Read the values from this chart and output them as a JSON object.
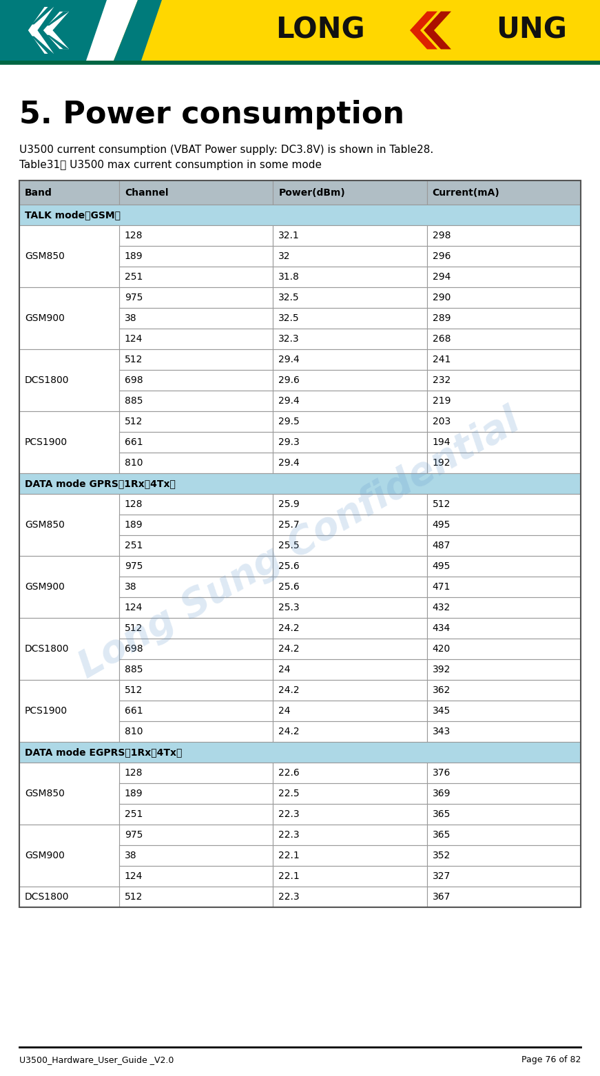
{
  "title": "5. Power consumption",
  "subtitle": "U3500 current consumption (VBAT Power supply: DC3.8V) is shown in Table28.",
  "table_title": "Table31： U3500 max current consumption in some mode",
  "footer_left": "U3500_Hardware_User_Guide _V2.0",
  "footer_right": "Page 76 of 82",
  "col_headers": [
    "Band",
    "Channel",
    "Power(dBm)",
    "Current(mA)"
  ],
  "header_row_bg": "#B8C8D8",
  "section_bg": "#ADD8E6",
  "data_bg": "#FFFFFF",
  "border_color": "#999999",
  "watermark_text": "Long Sung Confidential",
  "watermark_color": "#6699CC",
  "watermark_alpha": 0.22,
  "table_data": [
    {
      "section": "TALK mode（GSM）",
      "band": "GSM850",
      "band_rows": 3,
      "rows": [
        [
          "128",
          "32.1",
          "298"
        ],
        [
          "189",
          "32",
          "296"
        ],
        [
          "251",
          "31.8",
          "294"
        ]
      ]
    },
    {
      "section": "TALK mode（GSM）",
      "band": "GSM900",
      "band_rows": 3,
      "rows": [
        [
          "975",
          "32.5",
          "290"
        ],
        [
          "38",
          "32.5",
          "289"
        ],
        [
          "124",
          "32.3",
          "268"
        ]
      ]
    },
    {
      "section": "TALK mode（GSM）",
      "band": "DCS1800",
      "band_rows": 3,
      "rows": [
        [
          "512",
          "29.4",
          "241"
        ],
        [
          "698",
          "29.6",
          "232"
        ],
        [
          "885",
          "29.4",
          "219"
        ]
      ]
    },
    {
      "section": "TALK mode（GSM）",
      "band": "PCS1900",
      "band_rows": 3,
      "rows": [
        [
          "512",
          "29.5",
          "203"
        ],
        [
          "661",
          "29.3",
          "194"
        ],
        [
          "810",
          "29.4",
          "192"
        ]
      ]
    },
    {
      "section": "DATA mode GPRS（1Rx，4Tx）",
      "band": "GSM850",
      "band_rows": 3,
      "rows": [
        [
          "128",
          "25.9",
          "512"
        ],
        [
          "189",
          "25.7",
          "495"
        ],
        [
          "251",
          "25.5",
          "487"
        ]
      ]
    },
    {
      "section": "DATA mode GPRS（1Rx，4Tx）",
      "band": "GSM900",
      "band_rows": 3,
      "rows": [
        [
          "975",
          "25.6",
          "495"
        ],
        [
          "38",
          "25.6",
          "471"
        ],
        [
          "124",
          "25.3",
          "432"
        ]
      ]
    },
    {
      "section": "DATA mode GPRS（1Rx，4Tx）",
      "band": "DCS1800",
      "band_rows": 3,
      "rows": [
        [
          "512",
          "24.2",
          "434"
        ],
        [
          "698",
          "24.2",
          "420"
        ],
        [
          "885",
          "24",
          "392"
        ]
      ]
    },
    {
      "section": "DATA mode GPRS（1Rx，4Tx）",
      "band": "PCS1900",
      "band_rows": 3,
      "rows": [
        [
          "512",
          "24.2",
          "362"
        ],
        [
          "661",
          "24",
          "345"
        ],
        [
          "810",
          "24.2",
          "343"
        ]
      ]
    },
    {
      "section": "DATA mode EGPRS（1Rx，4Tx）",
      "band": "GSM850",
      "band_rows": 3,
      "rows": [
        [
          "128",
          "22.6",
          "376"
        ],
        [
          "189",
          "22.5",
          "369"
        ],
        [
          "251",
          "22.3",
          "365"
        ]
      ]
    },
    {
      "section": "DATA mode EGPRS（1Rx，4Tx）",
      "band": "GSM900",
      "band_rows": 3,
      "rows": [
        [
          "975",
          "22.3",
          "365"
        ],
        [
          "38",
          "22.1",
          "352"
        ],
        [
          "124",
          "22.1",
          "327"
        ]
      ]
    },
    {
      "section": "DATA mode EGPRS（1Rx，4Tx）",
      "band": "DCS1800",
      "band_rows": 1,
      "rows": [
        [
          "512",
          "22.3",
          "367"
        ]
      ]
    }
  ]
}
